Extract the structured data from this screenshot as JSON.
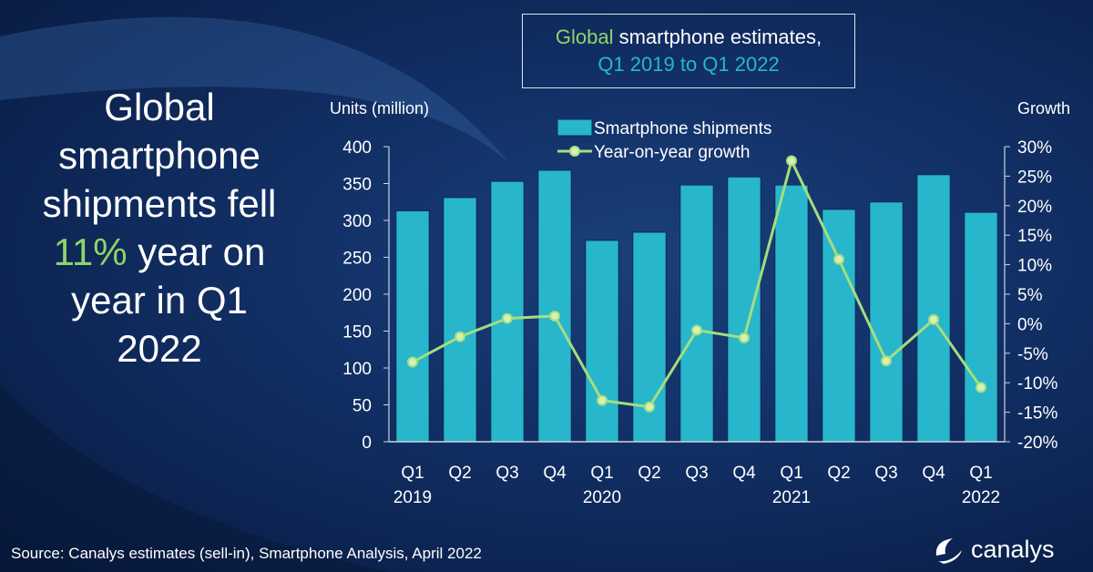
{
  "headline": {
    "line1": "Global",
    "line2": "smartphone",
    "line3": "shipments fell",
    "highlight": "11%",
    "line4_rest": " year on",
    "line5": "year in Q1",
    "line6": "2022"
  },
  "title": {
    "part1": "Global",
    "part2": " smartphone estimates,",
    "part3": "Q1 2019 to Q1 2022"
  },
  "source": "Source: Canalys estimates (sell-in), Smartphone Analysis, April 2022",
  "logo": {
    "text": "canalys",
    "icon": "canalys-swirl-icon"
  },
  "colors": {
    "bar": "#27b6cb",
    "line": "#a5dd7f",
    "highlight": "#8fd46a",
    "title_quarter": "#27b6d0"
  },
  "chart_data": {
    "type": "bar",
    "title": "Global smartphone estimates, Q1 2019 to Q1 2022",
    "ylabel": "Units (million)",
    "y2label": "Growth",
    "ylim": [
      0,
      400
    ],
    "y2lim": [
      -20,
      30
    ],
    "yticks": [
      "0",
      "50",
      "100",
      "150",
      "200",
      "250",
      "300",
      "350",
      "400"
    ],
    "y2ticks": [
      "-20%",
      "-15%",
      "-10%",
      "-5%",
      "0%",
      "5%",
      "10%",
      "15%",
      "20%",
      "25%",
      "30%"
    ],
    "categories": [
      "Q1",
      "Q2",
      "Q3",
      "Q4",
      "Q1",
      "Q2",
      "Q3",
      "Q4",
      "Q1",
      "Q2",
      "Q3",
      "Q4",
      "Q1"
    ],
    "year_labels": [
      {
        "index": 0,
        "label": "2019"
      },
      {
        "index": 4,
        "label": "2020"
      },
      {
        "index": 8,
        "label": "2021"
      },
      {
        "index": 12,
        "label": "2022"
      }
    ],
    "legend_position": "top-center",
    "series": [
      {
        "name": "Smartphone shipments",
        "type": "bar",
        "axis": "left",
        "values": [
          313,
          331,
          353,
          368,
          273,
          284,
          348,
          359,
          348,
          315,
          325,
          362,
          311
        ]
      },
      {
        "name": "Year-on-year growth",
        "type": "line",
        "axis": "right",
        "values": [
          -6.5,
          -2.2,
          0.9,
          1.3,
          -13.0,
          -14.1,
          -1.1,
          -2.4,
          27.6,
          10.9,
          -6.3,
          0.7,
          -10.8
        ]
      }
    ]
  }
}
